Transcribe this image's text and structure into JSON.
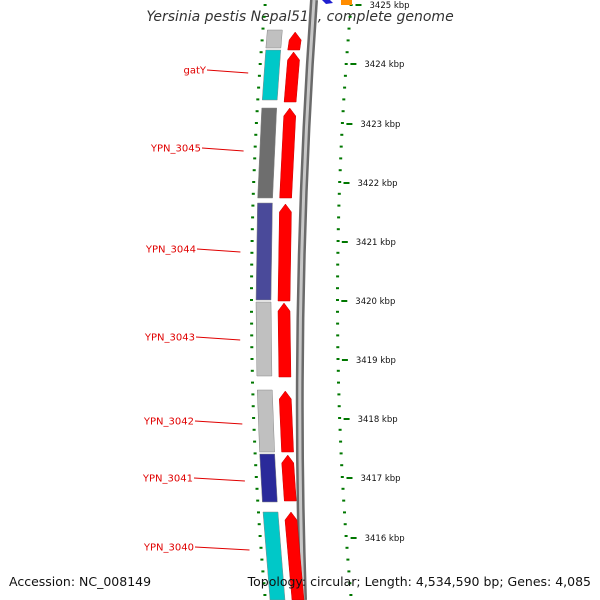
{
  "title": "Yersinia pestis Nepal516, complete genome",
  "accession": "Accession: NC_008149",
  "topology": "Topology: circular; Length: 4,534,590 bp; Genes: 4,085",
  "colors": {
    "forward_strand": "#ff0000",
    "gene_label": "#e00000",
    "tick": "#007700",
    "backbone": "#808080"
  },
  "tick_labels": [
    "3425 kbp",
    "3424 kbp",
    "3423 kbp",
    "3422 kbp",
    "3421 kbp",
    "3420 kbp",
    "3419 kbp",
    "3418 kbp",
    "3417 kbp",
    "3416 kbp"
  ],
  "gene_labels": [
    "gatY",
    "YPN_3045",
    "YPN_3044",
    "YPN_3043",
    "YPN_3042",
    "YPN_3041",
    "YPN_3040"
  ],
  "cog_colors": [
    "#c0c0c0",
    "#00c8c8",
    "#6e6e6e",
    "#4a4a9a",
    "#c0c0c0",
    "#c0c0c0",
    "#2a2a9a",
    "#00c8c8"
  ]
}
